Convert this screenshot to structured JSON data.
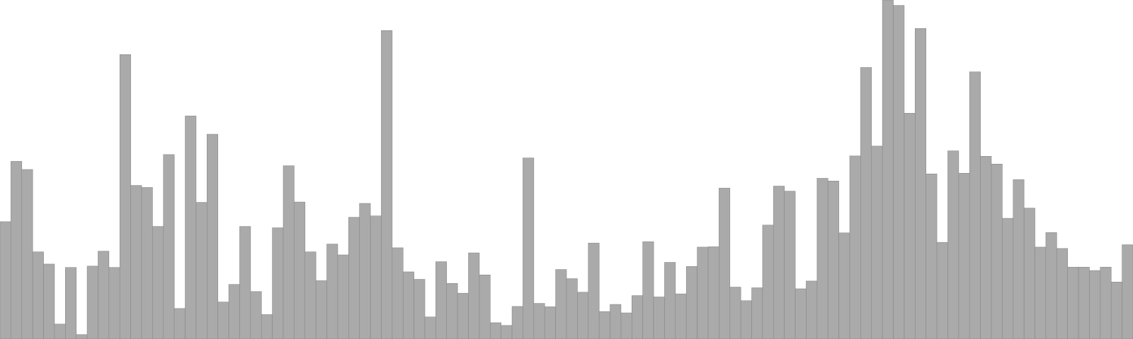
{
  "chart_data": {
    "type": "bar",
    "title": "",
    "xlabel": "",
    "ylabel": "",
    "ylim": [
      0,
      100
    ],
    "grid": false,
    "legend": "none",
    "bar_color": "#aaaaaa",
    "bar_edge_color": "#888888",
    "values": [
      34.6,
      52.4,
      50.0,
      25.7,
      22.1,
      4.4,
      21.1,
      1.3,
      21.5,
      25.9,
      21.1,
      83.9,
      45.3,
      44.7,
      33.2,
      54.4,
      9.0,
      65.8,
      40.3,
      60.4,
      10.9,
      16.1,
      33.2,
      14.0,
      7.2,
      32.8,
      51.1,
      40.4,
      25.7,
      17.2,
      28.0,
      24.8,
      35.9,
      40.0,
      36.3,
      91.0,
      26.9,
      19.8,
      17.6,
      6.5,
      22.8,
      16.4,
      13.5,
      25.4,
      18.9,
      4.8,
      4.0,
      9.6,
      53.4,
      10.5,
      9.5,
      20.5,
      17.8,
      13.8,
      28.3,
      8.1,
      10.2,
      7.7,
      12.8,
      28.7,
      12.4,
      22.6,
      13.3,
      21.4,
      27.1,
      27.2,
      44.5,
      15.3,
      11.3,
      15.1,
      33.6,
      45.1,
      43.6,
      14.8,
      17.1,
      47.4,
      46.6,
      31.3,
      54.0,
      80.1,
      56.9,
      100.0,
      98.4,
      66.6,
      91.6,
      48.7,
      28.5,
      55.5,
      48.9,
      78.8,
      53.9,
      51.6,
      35.6,
      47.0,
      38.6,
      27.1,
      31.4,
      26.7,
      21.2,
      21.2,
      20.2,
      21.2,
      16.8,
      27.8
    ]
  }
}
